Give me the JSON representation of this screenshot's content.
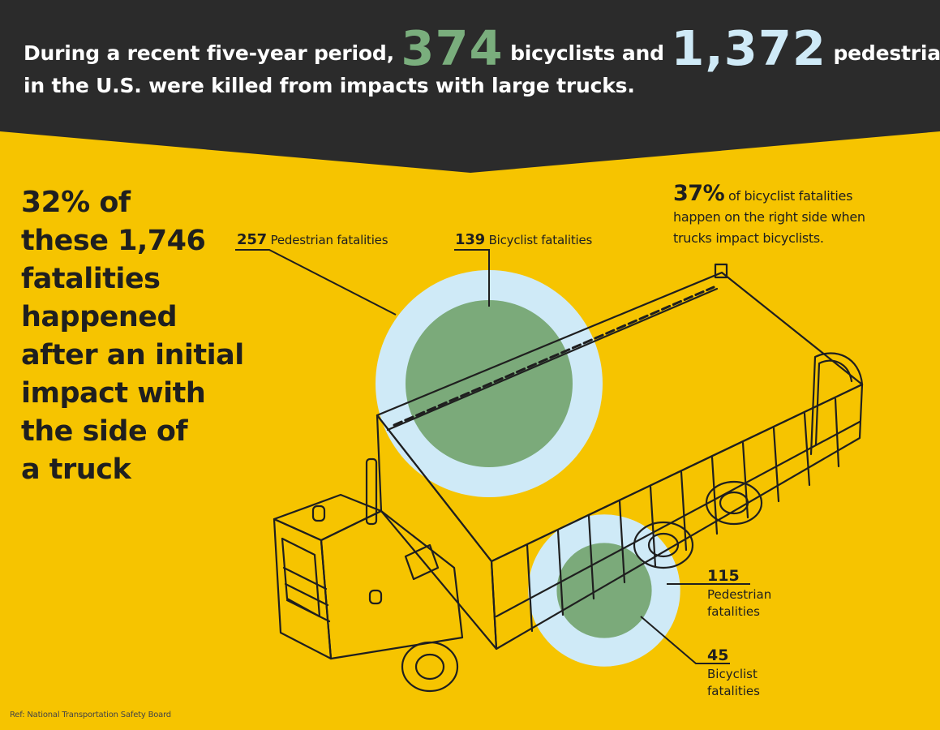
{
  "headline": {
    "intro": "During a recent five-year period,",
    "bicyclists_count": "374",
    "bicyclists_text": "bicyclists and",
    "pedestrians_count": "1,372",
    "pedestrians_text": "pedestrians",
    "line2": "in the U.S. were killed from impacts with large trucks."
  },
  "left_stat": {
    "percent": "32%",
    "of": "of",
    "lines": [
      "these 1,746",
      "fatalities",
      "happened",
      "after an initial",
      "impact with",
      "the side of",
      "a truck"
    ]
  },
  "top_labels": {
    "pedestrian_count": "257",
    "pedestrian_text": "Pedestrian fatalities",
    "bicyclist_count": "139",
    "bicyclist_text": "Bicyclist fatalities"
  },
  "right_stat": {
    "percent": "37%",
    "line1": "of bicyclist fatalities",
    "line2": "happen on the right side when",
    "line3": "trucks impact bicyclists."
  },
  "right_side_labels": {
    "pedestrian_count": "115",
    "pedestrian_line1": "Pedestrian",
    "pedestrian_line2": "fatalities",
    "bicyclist_count": "45",
    "bicyclist_line1": "Bicyclist",
    "bicyclist_line2": "fatalities"
  },
  "circles": {
    "left_side_pedestrian": 257,
    "left_side_bicyclist": 139,
    "right_side_pedestrian": 115,
    "right_side_bicyclist": 45
  },
  "reference": "Ref: National Transportation Safety Board",
  "colors": {
    "background": "#F6C400",
    "banner": "#2B2B2B",
    "pedestrian_circle": "#CFEAF7",
    "bicyclist_circle": "#7BAA7A",
    "bicyclist_number": "#7AAE7D",
    "pedestrian_number": "#CFEAF7",
    "text": "#1F1F1F"
  }
}
